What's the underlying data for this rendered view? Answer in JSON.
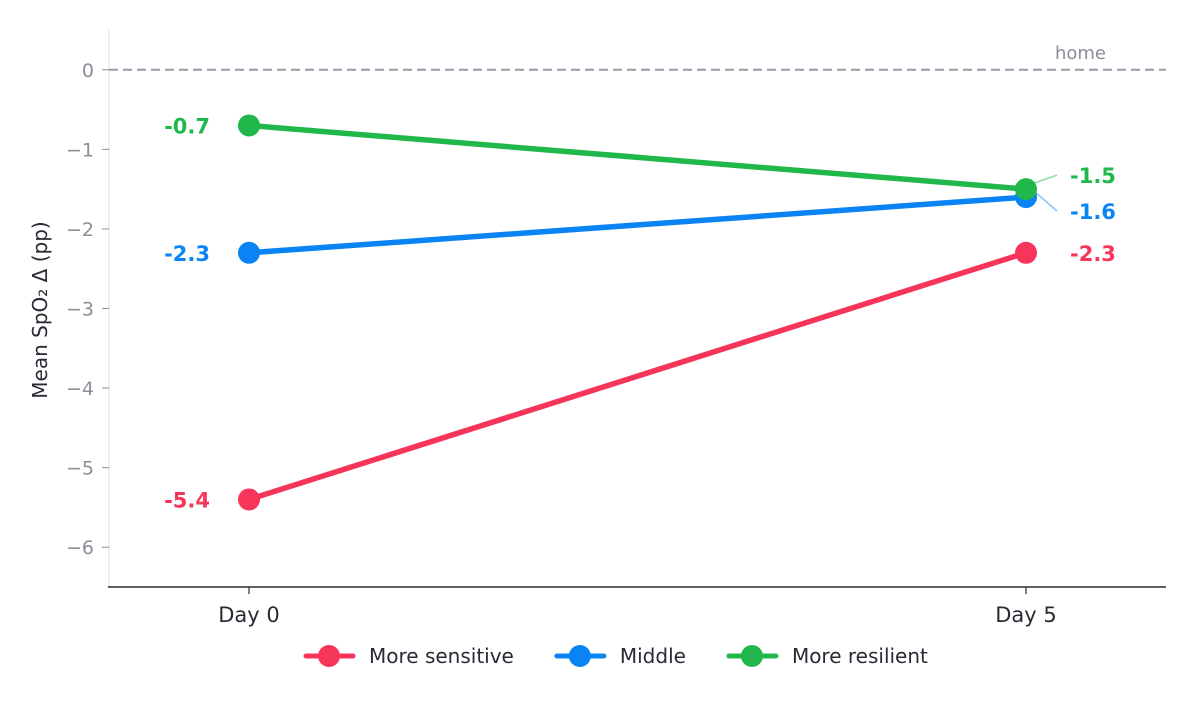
{
  "chart_data": {
    "type": "line",
    "title": "",
    "xlabel": "",
    "ylabel": "Mean SpO₂ Δ (pp)",
    "categories": [
      "Day 0",
      "Day 5"
    ],
    "ylim": [
      -6.5,
      0.5
    ],
    "yticks": [
      0,
      -1,
      -2,
      -3,
      -4,
      -5,
      -6
    ],
    "ytick_labels": [
      "0",
      "−1",
      "−2",
      "−3",
      "−4",
      "−5",
      "−6"
    ],
    "grid": false,
    "legend_position": "bottom",
    "reference_line": {
      "value": 0,
      "label": "home",
      "style": "dashed",
      "color": "#9a9aaa"
    },
    "series": [
      {
        "name": "More sensitive",
        "color": "#f7345a",
        "values": [
          -5.4,
          -2.3
        ],
        "labels": [
          "-5.4",
          "-2.3"
        ]
      },
      {
        "name": "Middle",
        "color": "#0a84f5",
        "values": [
          -2.3,
          -1.6
        ],
        "labels": [
          "-2.3",
          "-1.6"
        ]
      },
      {
        "name": "More resilient",
        "color": "#20b84a",
        "values": [
          -0.7,
          -1.5
        ],
        "labels": [
          "-0.7",
          "-1.5"
        ]
      }
    ]
  }
}
